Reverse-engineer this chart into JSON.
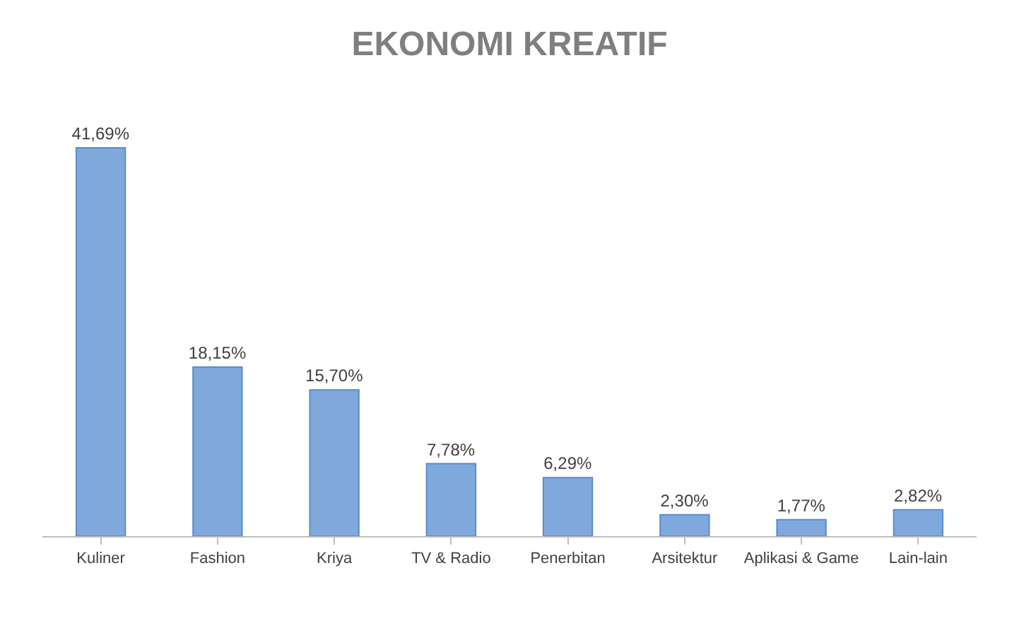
{
  "chart_data": {
    "type": "bar",
    "title": "EKONOMI KREATIF",
    "categories": [
      "Kuliner",
      "Fashion",
      "Kriya",
      "TV & Radio",
      "Penerbitan",
      "Arsitektur",
      "Aplikasi & Game",
      "Lain-lain"
    ],
    "values": [
      41.69,
      18.15,
      15.7,
      7.78,
      6.29,
      2.3,
      1.77,
      2.82
    ],
    "value_labels": [
      "41,69%",
      "18,15%",
      "15,70%",
      "7,78%",
      "6,29%",
      "2,30%",
      "1,77%",
      "2,82%"
    ],
    "color": "#7fa9dc"
  }
}
